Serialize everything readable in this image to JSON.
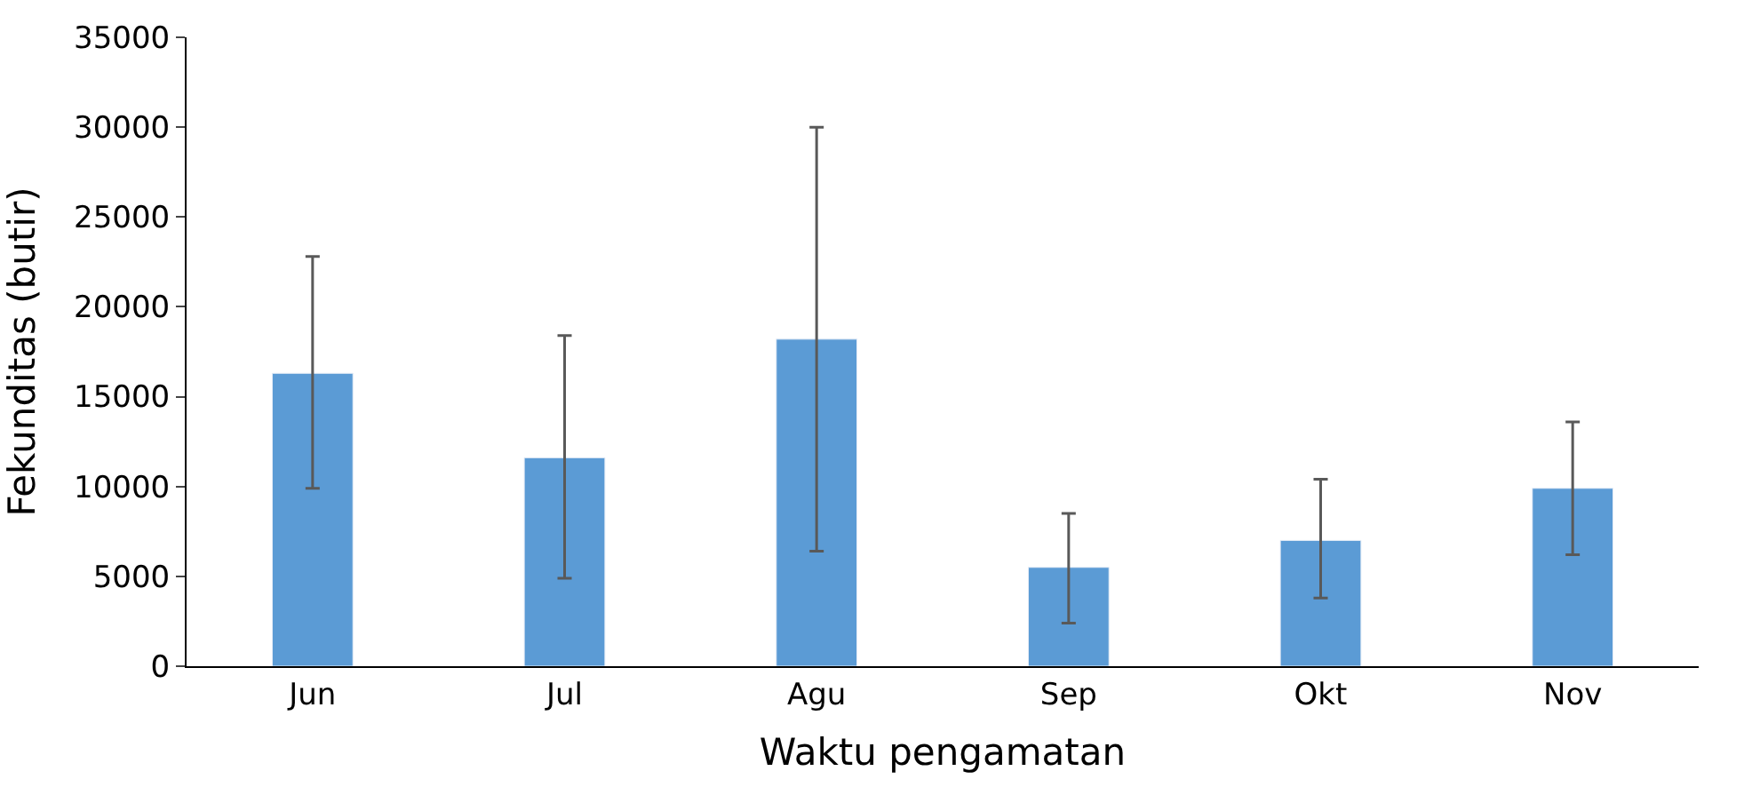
{
  "chart_data": {
    "type": "bar",
    "xlabel": "Waktu pengamatan",
    "ylabel": "Fekunditas (butir)",
    "categories": [
      "Jun",
      "Jul",
      "Agu",
      "Sep",
      "Okt",
      "Nov"
    ],
    "values": [
      16300,
      11600,
      18200,
      5500,
      7000,
      9900
    ],
    "errors": [
      [
        9900,
        22800
      ],
      [
        4900,
        18400
      ],
      [
        6400,
        30000
      ],
      [
        2400,
        8500
      ],
      [
        3800,
        10400
      ],
      [
        6200,
        13600
      ]
    ],
    "color": "#5b9bd5",
    "ylim": [
      0,
      35000
    ],
    "yticks": [
      0,
      5000,
      10000,
      15000,
      20000,
      25000,
      30000,
      35000
    ]
  }
}
